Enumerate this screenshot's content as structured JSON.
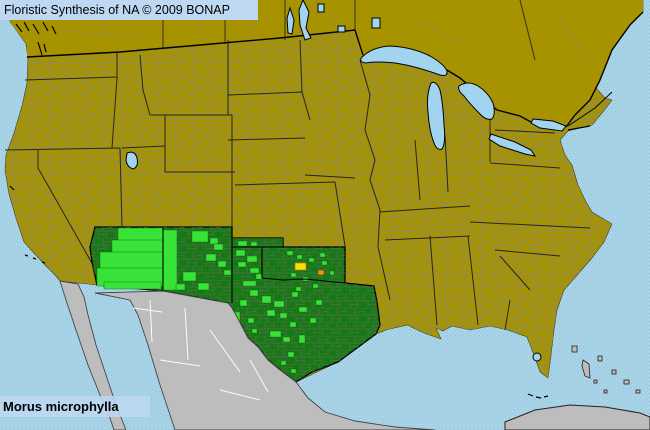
{
  "header": {
    "title": "Floristic Synthesis of NA © 2009 BONAP"
  },
  "footer": {
    "species": "Morus microphylla"
  },
  "palette": {
    "ocean": "#a9d3e6",
    "ocean_dot": "#8fc2d9",
    "banner_bg": "#bed8f2",
    "text_color": "#000000",
    "land_absent": "#a79300",
    "county_line_olive": "#8a8a6e",
    "state_present": "#157915",
    "county_line_green": "#5d6d52",
    "county_present": "#36e336",
    "county_yellow": "#f8e000",
    "county_orange": "#e09b10",
    "foreign_land": "#bdbdbd",
    "foreign_border": "#ffffff",
    "lake": "#a2d4ef",
    "border_black": "#000000"
  },
  "map": {
    "dark_green_states": [
      "Arizona",
      "New Mexico",
      "Oklahoma",
      "Texas"
    ],
    "bright_green_counties": [
      [
        118,
        228,
        45,
        14
      ],
      [
        112,
        240,
        51,
        18
      ],
      [
        100,
        252,
        63,
        20
      ],
      [
        97,
        268,
        66,
        18
      ],
      [
        104,
        282,
        57,
        7
      ],
      [
        163,
        230,
        14,
        60
      ],
      [
        192,
        231,
        16,
        11
      ],
      [
        210,
        238,
        8,
        6
      ],
      [
        214,
        244,
        9,
        6
      ],
      [
        206,
        254,
        10,
        7
      ],
      [
        218,
        261,
        8,
        6
      ],
      [
        224,
        270,
        7,
        5
      ],
      [
        183,
        272,
        13,
        9
      ],
      [
        198,
        283,
        11,
        7
      ],
      [
        176,
        284,
        9,
        6
      ],
      [
        236,
        250,
        9,
        6
      ],
      [
        247,
        256,
        10,
        6
      ],
      [
        238,
        262,
        8,
        5
      ],
      [
        250,
        268,
        9,
        5
      ],
      [
        256,
        274,
        7,
        5
      ],
      [
        243,
        281,
        13,
        5
      ],
      [
        240,
        300,
        7,
        6
      ],
      [
        234,
        312,
        6,
        10
      ],
      [
        248,
        318,
        6,
        5
      ],
      [
        252,
        329,
        5,
        4
      ],
      [
        250,
        290,
        8,
        6
      ],
      [
        262,
        296,
        9,
        7
      ],
      [
        274,
        301,
        10,
        6
      ],
      [
        267,
        310,
        8,
        6
      ],
      [
        280,
        313,
        7,
        5
      ],
      [
        290,
        322,
        6,
        5
      ],
      [
        299,
        307,
        8,
        5
      ],
      [
        310,
        318,
        6,
        5
      ],
      [
        270,
        331,
        11,
        6
      ],
      [
        283,
        337,
        7,
        5
      ],
      [
        299,
        335,
        6,
        8
      ],
      [
        316,
        300,
        6,
        5
      ],
      [
        292,
        292,
        6,
        5
      ],
      [
        288,
        352,
        6,
        5
      ],
      [
        281,
        361,
        5,
        4
      ],
      [
        291,
        369,
        5,
        4
      ],
      [
        238,
        241,
        9,
        5
      ],
      [
        251,
        242,
        6,
        4
      ],
      [
        287,
        251,
        6,
        4
      ],
      [
        297,
        255,
        5,
        4
      ],
      [
        309,
        258,
        5,
        4
      ],
      [
        320,
        253,
        5,
        4
      ],
      [
        322,
        261,
        5,
        4
      ],
      [
        291,
        273,
        5,
        4
      ],
      [
        303,
        277,
        5,
        4
      ],
      [
        313,
        284,
        5,
        4
      ],
      [
        330,
        271,
        4,
        4
      ],
      [
        296,
        287,
        5,
        4
      ]
    ],
    "yellow_counties": [
      [
        295,
        263,
        11,
        7
      ]
    ],
    "orange_counties": [
      [
        318,
        270,
        6,
        5
      ]
    ]
  }
}
